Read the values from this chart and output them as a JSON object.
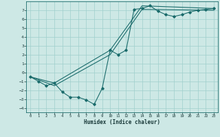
{
  "xlabel": "Humidex (Indice chaleur)",
  "ylabel": "",
  "bg_color": "#cde8e5",
  "grid_color": "#9fcfcc",
  "line_color": "#1a6b6b",
  "xlim": [
    -0.5,
    23.5
  ],
  "ylim": [
    -4.5,
    8.0
  ],
  "xticks": [
    0,
    1,
    2,
    3,
    4,
    5,
    6,
    7,
    8,
    9,
    10,
    11,
    12,
    13,
    14,
    15,
    16,
    17,
    18,
    19,
    20,
    21,
    22,
    23
  ],
  "yticks": [
    -4,
    -3,
    -2,
    -1,
    0,
    1,
    2,
    3,
    4,
    5,
    6,
    7
  ],
  "line1_x": [
    0,
    1,
    2,
    3,
    4,
    5,
    6,
    7,
    8,
    9,
    10,
    11,
    12,
    13,
    14,
    15,
    16,
    17,
    18,
    19,
    20,
    21,
    22,
    23
  ],
  "line1_y": [
    -0.5,
    -1.0,
    -1.5,
    -1.2,
    -2.2,
    -2.8,
    -2.8,
    -3.1,
    -3.6,
    -1.8,
    2.5,
    2.0,
    2.5,
    7.1,
    7.2,
    7.5,
    6.9,
    6.5,
    6.3,
    6.5,
    6.8,
    7.0,
    7.1,
    7.2
  ],
  "line2_x": [
    0,
    3,
    10,
    14,
    23
  ],
  "line2_y": [
    -0.5,
    -1.2,
    2.5,
    7.5,
    7.2
  ],
  "line3_x": [
    0,
    3,
    10,
    14,
    23
  ],
  "line3_y": [
    -0.5,
    -1.5,
    2.0,
    7.1,
    7.0
  ]
}
